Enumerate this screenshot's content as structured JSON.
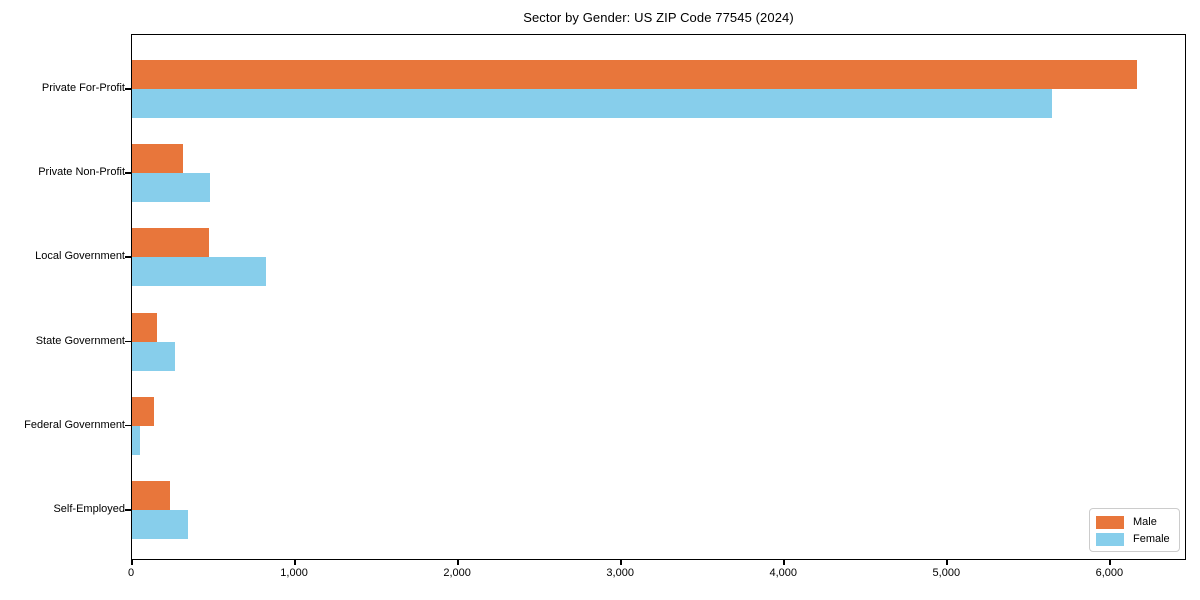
{
  "chart_data": {
    "type": "bar",
    "orientation": "horizontal",
    "title": "Sector by Gender: US ZIP Code 77545 (2024)",
    "categories": [
      "Private For-Profit",
      "Private Non-Profit",
      "Local Government",
      "State Government",
      "Federal Government",
      "Self-Employed"
    ],
    "series": [
      {
        "name": "Male",
        "color": "#e8763b",
        "values": [
          6160,
          310,
          470,
          150,
          135,
          230
        ]
      },
      {
        "name": "Female",
        "color": "#87ceeb",
        "values": [
          5640,
          475,
          820,
          265,
          50,
          345
        ]
      }
    ],
    "xlabel": "",
    "ylabel": "",
    "xlim": [
      0,
      6470
    ],
    "xticks": [
      0,
      1000,
      2000,
      3000,
      4000,
      5000,
      6000
    ],
    "xtick_labels": [
      "0",
      "1,000",
      "2,000",
      "3,000",
      "4,000",
      "5,000",
      "6,000"
    ],
    "grid": false,
    "legend": {
      "position": "lower-right",
      "items": [
        {
          "label": "Male",
          "color": "#e8763b"
        },
        {
          "label": "Female",
          "color": "#87ceeb"
        }
      ]
    }
  }
}
